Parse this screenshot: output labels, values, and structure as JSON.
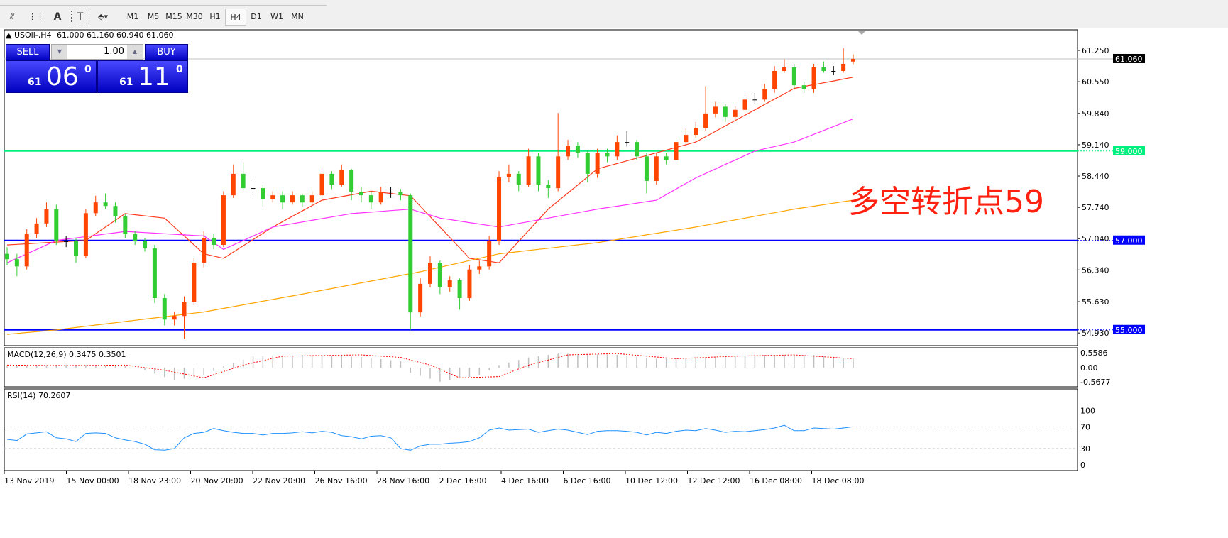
{
  "toolbar": {
    "tools": [
      {
        "icon": "fibonacci-fan-icon",
        "label": ""
      },
      {
        "icon": "fibonacci-grid-icon",
        "label": ""
      },
      {
        "icon": "text-icon",
        "label": "A"
      },
      {
        "icon": "text-label-icon",
        "label": "T"
      },
      {
        "icon": "arrows-dropdown-icon",
        "label": "⬘▾"
      }
    ],
    "timeframes": [
      "M1",
      "M5",
      "M15",
      "M30",
      "H1",
      "H4",
      "D1",
      "W1",
      "MN"
    ],
    "active_timeframe": "H4"
  },
  "chart_header": {
    "symbol": "USOil-,H4",
    "ohlc": "61.000 61.160 60.940 61.060"
  },
  "trade_panel": {
    "sell_label": "SELL",
    "buy_label": "BUY",
    "lot": "1.00",
    "sell_price_big": "61",
    "sell_price_pips": "06",
    "sell_price_frac": "0",
    "buy_price_big": "61",
    "buy_price_pips": "11",
    "buy_price_frac": "0"
  },
  "annotation": "多空转折点59",
  "colors": {
    "bull": "#ff4500",
    "bear": "#32cd32",
    "ma_fast": "#ff3b1f",
    "ma_mid": "#ff33ff",
    "ma_slow": "#ffa500",
    "level_59": "#00f080",
    "level_57": "#0000ff",
    "level_55": "#0000ff",
    "rsi": "#1e90ff",
    "macd_signal": "#ff0000",
    "macd_hist": "#c0c0c0",
    "annotation": "#ff2010"
  },
  "chart_data": [
    {
      "type": "candlestick",
      "symbol": "USOil-",
      "timeframe": "H4",
      "ylim": [
        54.9,
        61.7
      ],
      "price_ticks": [
        "61.250",
        "60.550",
        "59.840",
        "59.140",
        "58.440",
        "57.740",
        "57.040",
        "56.340",
        "55.630",
        "54.930"
      ],
      "bid_label": "61.060",
      "bid": 61.06,
      "levels": [
        {
          "value": 59.0,
          "label": "59.000",
          "color": "#00f080"
        },
        {
          "value": 57.0,
          "label": "57.000",
          "color": "#0000ff"
        },
        {
          "value": 55.0,
          "label": "55.000",
          "color": "#0000ff"
        }
      ],
      "x_ticks": [
        "13 Nov 2019",
        "15 Nov 00:00",
        "18 Nov 23:00",
        "20 Nov 20:00",
        "22 Nov 20:00",
        "26 Nov 16:00",
        "28 Nov 16:00",
        "2 Dec 16:00",
        "4 Dec 16:00",
        "6 Dec 16:00",
        "10 Dec 12:00",
        "12 Dec 12:00",
        "16 Dec 08:00",
        "18 Dec 08:00"
      ],
      "ohlc": [
        [
          56.7,
          56.85,
          56.45,
          56.58
        ],
        [
          56.58,
          56.7,
          56.2,
          56.42
        ],
        [
          56.42,
          57.25,
          56.35,
          57.14
        ],
        [
          57.14,
          57.5,
          57.05,
          57.38
        ],
        [
          57.38,
          57.85,
          57.3,
          57.7
        ],
        [
          57.7,
          57.8,
          56.9,
          56.98
        ],
        [
          56.98,
          57.1,
          56.85,
          56.98
        ],
        [
          56.98,
          57.05,
          56.5,
          56.66
        ],
        [
          56.66,
          57.7,
          56.6,
          57.61
        ],
        [
          57.61,
          58.0,
          57.55,
          57.85
        ],
        [
          57.85,
          58.05,
          57.7,
          57.77
        ],
        [
          57.77,
          57.85,
          57.4,
          57.54
        ],
        [
          57.54,
          57.6,
          57.05,
          57.14
        ],
        [
          57.14,
          57.2,
          56.9,
          56.98
        ],
        [
          56.98,
          57.05,
          56.75,
          56.82
        ],
        [
          56.82,
          56.9,
          55.6,
          55.71
        ],
        [
          55.71,
          55.8,
          55.1,
          55.23
        ],
        [
          55.23,
          55.4,
          55.1,
          55.31
        ],
        [
          55.31,
          55.75,
          54.8,
          55.63
        ],
        [
          55.63,
          56.6,
          55.55,
          56.5
        ],
        [
          56.5,
          57.2,
          56.4,
          57.06
        ],
        [
          57.06,
          57.15,
          56.8,
          56.9
        ],
        [
          56.9,
          58.1,
          56.85,
          58.01
        ],
        [
          58.01,
          58.7,
          57.95,
          58.49
        ],
        [
          58.49,
          58.75,
          58.1,
          58.17
        ],
        [
          58.17,
          58.35,
          58.05,
          58.17
        ],
        [
          58.17,
          58.25,
          57.75,
          57.93
        ],
        [
          57.93,
          58.1,
          57.85,
          58.01
        ],
        [
          58.01,
          58.1,
          57.7,
          57.85
        ],
        [
          57.85,
          58.1,
          57.8,
          58.01
        ],
        [
          58.01,
          58.05,
          57.75,
          57.85
        ],
        [
          57.85,
          58.1,
          57.8,
          58.01
        ],
        [
          58.01,
          58.65,
          57.95,
          58.49
        ],
        [
          58.49,
          58.55,
          58.15,
          58.25
        ],
        [
          58.25,
          58.7,
          58.2,
          58.57
        ],
        [
          58.57,
          58.6,
          57.9,
          58.09
        ],
        [
          58.09,
          58.2,
          57.85,
          58.01
        ],
        [
          58.01,
          58.1,
          57.7,
          57.85
        ],
        [
          57.85,
          58.2,
          57.8,
          58.09
        ],
        [
          58.09,
          58.2,
          57.95,
          58.09
        ],
        [
          58.09,
          58.15,
          57.9,
          58.01
        ],
        [
          58.01,
          58.05,
          55.0,
          55.39
        ],
        [
          55.39,
          56.15,
          55.3,
          56.03
        ],
        [
          56.03,
          56.65,
          55.95,
          56.5
        ],
        [
          56.5,
          56.55,
          55.8,
          55.95
        ],
        [
          55.95,
          56.2,
          55.85,
          56.11
        ],
        [
          56.11,
          56.15,
          55.45,
          55.71
        ],
        [
          55.71,
          56.45,
          55.65,
          56.35
        ],
        [
          56.35,
          56.55,
          56.25,
          56.42
        ],
        [
          56.42,
          57.1,
          56.35,
          56.98
        ],
        [
          56.98,
          58.55,
          56.9,
          58.41
        ],
        [
          58.41,
          58.7,
          58.3,
          58.49
        ],
        [
          58.49,
          58.55,
          58.1,
          58.25
        ],
        [
          58.25,
          59.05,
          58.2,
          58.88
        ],
        [
          58.88,
          58.95,
          58.1,
          58.25
        ],
        [
          58.25,
          58.35,
          57.95,
          58.17
        ],
        [
          58.17,
          59.85,
          58.1,
          58.88
        ],
        [
          58.88,
          59.25,
          58.8,
          59.12
        ],
        [
          59.12,
          59.2,
          58.85,
          58.96
        ],
        [
          58.96,
          59.0,
          58.3,
          58.49
        ],
        [
          58.49,
          59.05,
          58.4,
          58.96
        ],
        [
          58.96,
          59.05,
          58.75,
          58.88
        ],
        [
          58.88,
          59.35,
          58.8,
          59.2
        ],
        [
          59.2,
          59.45,
          59.1,
          59.2
        ],
        [
          59.2,
          59.25,
          58.8,
          58.88
        ],
        [
          58.88,
          58.95,
          58.05,
          58.33
        ],
        [
          58.33,
          58.95,
          58.25,
          58.88
        ],
        [
          58.88,
          58.95,
          58.7,
          58.8
        ],
        [
          58.8,
          59.3,
          58.75,
          59.2
        ],
        [
          59.2,
          59.5,
          59.1,
          59.36
        ],
        [
          59.36,
          59.65,
          59.3,
          59.52
        ],
        [
          59.52,
          60.45,
          59.45,
          59.84
        ],
        [
          59.84,
          60.1,
          59.75,
          59.99
        ],
        [
          59.99,
          60.05,
          59.65,
          59.76
        ],
        [
          59.76,
          60.0,
          59.7,
          59.92
        ],
        [
          59.92,
          60.25,
          59.85,
          60.15
        ],
        [
          60.15,
          60.3,
          60.05,
          60.15
        ],
        [
          60.15,
          60.5,
          60.1,
          60.39
        ],
        [
          60.39,
          60.9,
          60.3,
          60.79
        ],
        [
          60.79,
          61.05,
          60.75,
          60.87
        ],
        [
          60.87,
          60.95,
          60.4,
          60.47
        ],
        [
          60.47,
          60.55,
          60.3,
          60.39
        ],
        [
          60.39,
          60.95,
          60.3,
          60.87
        ],
        [
          60.87,
          61.0,
          60.75,
          60.79
        ],
        [
          60.79,
          60.9,
          60.7,
          60.79
        ],
        [
          60.79,
          61.3,
          60.75,
          60.95
        ],
        [
          61.0,
          61.16,
          60.94,
          61.06
        ]
      ],
      "moving_averages": [
        {
          "color": "#ff3b1f",
          "points": [
            [
              0,
              56.9
            ],
            [
              8,
              57.0
            ],
            [
              12,
              57.6
            ],
            [
              16,
              57.5
            ],
            [
              20,
              56.7
            ],
            [
              22,
              56.6
            ],
            [
              27,
              57.3
            ],
            [
              32,
              57.9
            ],
            [
              37,
              58.1
            ],
            [
              41,
              58.0
            ],
            [
              47,
              56.6
            ],
            [
              50,
              56.5
            ],
            [
              55,
              57.7
            ],
            [
              60,
              58.6
            ],
            [
              65,
              58.9
            ],
            [
              70,
              59.2
            ],
            [
              75,
              59.8
            ],
            [
              80,
              60.4
            ],
            [
              86,
              60.65
            ]
          ]
        },
        {
          "color": "#ff33ff",
          "points": [
            [
              0,
              56.5
            ],
            [
              5,
              57.0
            ],
            [
              12,
              57.2
            ],
            [
              20,
              57.1
            ],
            [
              22,
              56.8
            ],
            [
              27,
              57.3
            ],
            [
              35,
              57.6
            ],
            [
              41,
              57.7
            ],
            [
              44,
              57.5
            ],
            [
              50,
              57.3
            ],
            [
              55,
              57.5
            ],
            [
              60,
              57.7
            ],
            [
              66,
              57.9
            ],
            [
              70,
              58.4
            ],
            [
              76,
              59.0
            ],
            [
              80,
              59.2
            ],
            [
              86,
              59.72
            ]
          ]
        },
        {
          "color": "#ffa500",
          "points": [
            [
              0,
              54.9
            ],
            [
              5,
              55.0
            ],
            [
              20,
              55.4
            ],
            [
              30,
              55.8
            ],
            [
              42,
              56.3
            ],
            [
              50,
              56.7
            ],
            [
              60,
              56.95
            ],
            [
              70,
              57.3
            ],
            [
              80,
              57.7
            ],
            [
              86,
              57.9
            ]
          ]
        }
      ]
    },
    {
      "type": "bar+line",
      "title": "MACD(12,26,9) 0.3475 0.3501",
      "ylim": [
        -0.62,
        0.62
      ],
      "y_ticks": [
        "0.5586",
        "0.00",
        "-0.5677"
      ],
      "main_points": [
        [
          0,
          0.05
        ],
        [
          6,
          0.12
        ],
        [
          12,
          0.08
        ],
        [
          14,
          -0.1
        ],
        [
          17,
          -0.5
        ],
        [
          20,
          -0.3
        ],
        [
          22,
          0.05
        ],
        [
          25,
          0.45
        ],
        [
          30,
          0.5
        ],
        [
          36,
          0.42
        ],
        [
          40,
          0.25
        ],
        [
          41,
          -0.2
        ],
        [
          44,
          -0.55
        ],
        [
          48,
          -0.3
        ],
        [
          50,
          0.1
        ],
        [
          53,
          0.4
        ],
        [
          56,
          0.55
        ],
        [
          62,
          0.5
        ],
        [
          66,
          0.35
        ],
        [
          70,
          0.4
        ],
        [
          76,
          0.5
        ],
        [
          82,
          0.5
        ],
        [
          86,
          0.3475
        ]
      ],
      "signal_points": [
        [
          0,
          0.1
        ],
        [
          6,
          0.08
        ],
        [
          12,
          0.1
        ],
        [
          16,
          -0.1
        ],
        [
          20,
          -0.4
        ],
        [
          24,
          0.1
        ],
        [
          28,
          0.45
        ],
        [
          36,
          0.5
        ],
        [
          40,
          0.4
        ],
        [
          43,
          0.1
        ],
        [
          46,
          -0.4
        ],
        [
          50,
          -0.35
        ],
        [
          53,
          0.1
        ],
        [
          57,
          0.5
        ],
        [
          62,
          0.55
        ],
        [
          68,
          0.35
        ],
        [
          74,
          0.45
        ],
        [
          80,
          0.5
        ],
        [
          86,
          0.3501
        ]
      ]
    },
    {
      "type": "line",
      "title": "RSI(14) 70.2607",
      "ylim": [
        0,
        100
      ],
      "y_ticks": [
        "100",
        "70",
        "30",
        "0"
      ],
      "levels": [
        70,
        30
      ],
      "values": [
        47,
        45,
        57,
        59,
        61,
        50,
        48,
        43,
        58,
        59,
        58,
        50,
        46,
        43,
        38,
        28,
        27,
        30,
        50,
        58,
        60,
        67,
        63,
        60,
        58,
        58,
        55,
        58,
        58,
        59,
        61,
        59,
        62,
        60,
        54,
        52,
        48,
        53,
        54,
        50,
        30,
        27,
        35,
        38,
        38,
        40,
        41,
        43,
        50,
        64,
        68,
        64,
        65,
        66,
        60,
        63,
        66,
        64,
        60,
        56,
        62,
        63,
        63,
        62,
        60,
        55,
        60,
        58,
        62,
        64,
        63,
        67,
        64,
        60,
        62,
        61,
        63,
        65,
        68,
        73,
        63,
        63,
        68,
        67,
        66,
        68,
        70.26
      ]
    }
  ]
}
